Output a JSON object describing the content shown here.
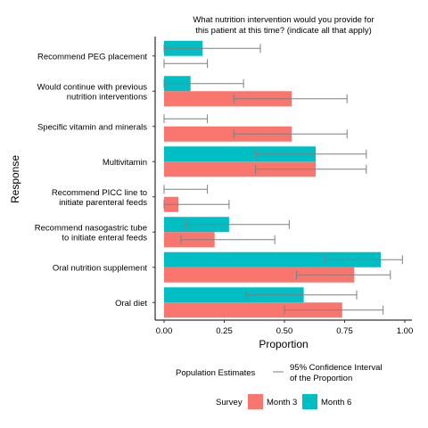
{
  "chart_data": {
    "type": "bar",
    "orientation": "horizontal",
    "title": "What nutrition intervention would you provide for this patient at this time? (indicate all that apply)",
    "title_lines": [
      "What nutrition intervention would you provide for",
      "this patient at this time? (indicate all that apply)"
    ],
    "xlabel": "Proportion",
    "ylabel": "Response",
    "xlim": [
      0,
      1
    ],
    "xticks": [
      "0.00",
      "0.25",
      "0.50",
      "0.75",
      "1.00"
    ],
    "xtick_values": [
      0,
      0.25,
      0.5,
      0.75,
      1.0
    ],
    "grid": false,
    "categories": [
      {
        "lines": [
          "Recommend PEG placement"
        ]
      },
      {
        "lines": [
          "Would continue with previous",
          "nutrition interventions"
        ]
      },
      {
        "lines": [
          "Specific vitamin and minerals"
        ]
      },
      {
        "lines": [
          "Multivitamin"
        ]
      },
      {
        "lines": [
          "Recommend PICC line to",
          "initiate parenteral feeds"
        ]
      },
      {
        "lines": [
          "Recommend nasogastric tube",
          "to initiate enteral feeds"
        ]
      },
      {
        "lines": [
          "Oral nutrition supplement"
        ]
      },
      {
        "lines": [
          "Oral diet"
        ]
      }
    ],
    "series": [
      {
        "name": "Month 6",
        "color": "#00BFC4",
        "values": [
          0.16,
          0.11,
          0.0,
          0.63,
          0.0,
          0.27,
          0.9,
          0.58
        ],
        "ci_low": [
          0.0,
          0.0,
          0.0,
          0.38,
          0.0,
          0.09,
          0.67,
          0.34
        ],
        "ci_high": [
          0.4,
          0.33,
          0.18,
          0.84,
          0.18,
          0.52,
          0.99,
          0.8
        ]
      },
      {
        "name": "Month 3",
        "color": "#F8766D",
        "values": [
          0.0,
          0.53,
          0.53,
          0.63,
          0.06,
          0.21,
          0.79,
          0.74
        ],
        "ci_low": [
          0.0,
          0.29,
          0.29,
          0.38,
          0.0,
          0.07,
          0.55,
          0.5
        ],
        "ci_high": [
          0.18,
          0.76,
          0.76,
          0.84,
          0.27,
          0.46,
          0.94,
          0.91
        ]
      }
    ],
    "legend": {
      "position": "bottom",
      "estimates_label": "Population Estimates",
      "ci_label_lines": [
        "95% Confidence Interval",
        "of the Proportion"
      ],
      "survey_title": "Survey",
      "entries": [
        "Month 3",
        "Month 6"
      ]
    }
  }
}
